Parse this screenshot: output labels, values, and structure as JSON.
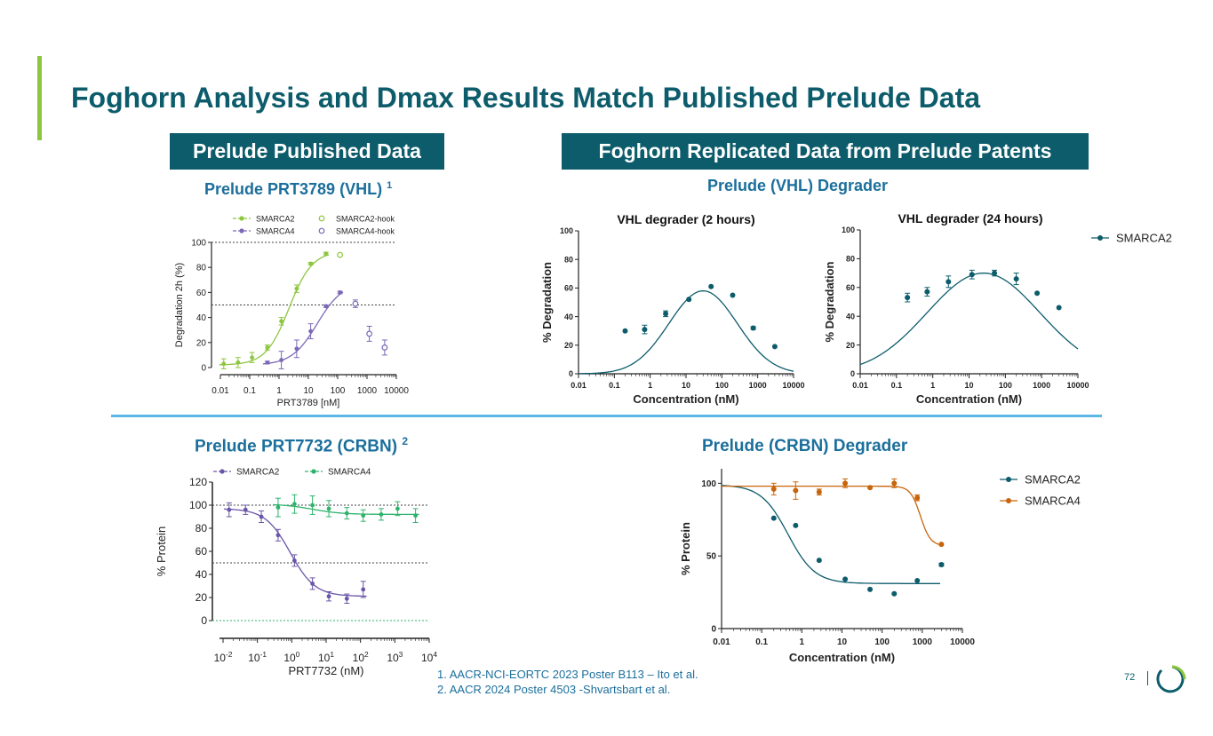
{
  "slide": {
    "title": "Foghorn Analysis and Dmax Results Match Published Prelude Data",
    "header_left": "Prelude Published Data",
    "header_right": "Foghorn Replicated Data from Prelude Patents",
    "subtitle_tl": "Prelude PRT3789 (VHL)",
    "subtitle_tl_sup": "1",
    "subtitle_bl": "Prelude PRT7732 (CRBN)",
    "subtitle_bl_sup": "2",
    "subtitle_tr": "Prelude (VHL) Degrader",
    "subtitle_br": "Prelude (CRBN) Degrader",
    "footnote1": "1. AACR-NCI-EORTC 2023 Poster B113 – Ito et al.",
    "footnote2": "2. AACR 2024 Poster 4503 -Shvartsbart et al.",
    "page_number": "72",
    "colors": {
      "brand": "#0d5c6b",
      "accent_green": "#8dc63f",
      "subtitle_blue": "#1b6f9c",
      "divider": "#5bb8e6"
    }
  },
  "chart_data": [
    {
      "id": "prt3789",
      "type": "scatter",
      "title": "",
      "xlabel": "PRT3789 [nM]",
      "ylabel": "Degradation 2h (%)",
      "xscale": "log",
      "xlim": [
        0.01,
        10000
      ],
      "ylim": [
        0,
        100
      ],
      "xticks": [
        0.01,
        0.1,
        1,
        10,
        100,
        1000,
        10000
      ],
      "xtick_labels": [
        "0.01",
        "0.1",
        "1",
        "10",
        "100",
        "1000",
        "10000"
      ],
      "yticks": [
        0,
        20,
        40,
        60,
        80,
        100
      ],
      "ytick_labels": [
        "0",
        "20",
        "40",
        "60",
        "80",
        "100"
      ],
      "reference_lines": [
        50,
        100
      ],
      "legend_position": "top",
      "series": [
        {
          "name": "SMARCA2",
          "color": "#8dc63f",
          "marker": "dot",
          "x": [
            0.013,
            0.04,
            0.12,
            0.4,
            1.2,
            4,
            12,
            40
          ],
          "y": [
            3,
            4,
            8,
            16,
            37,
            63,
            83,
            91
          ],
          "err": [
            4,
            4,
            4,
            2,
            3,
            3,
            1,
            1
          ],
          "fit": {
            "bottom": 2,
            "top": 93,
            "ec50": 2.2,
            "hill": 1.1
          }
        },
        {
          "name": "SMARCA4",
          "color": "#7b68b8",
          "marker": "dot",
          "x": [
            0.4,
            1.2,
            4,
            12,
            40,
            120
          ],
          "y": [
            4,
            6,
            15,
            29,
            49,
            60
          ],
          "err": [
            1,
            7,
            7,
            6,
            1,
            1
          ],
          "fit": {
            "bottom": 2,
            "top": 68,
            "ec50": 20,
            "hill": 1.0
          }
        },
        {
          "name": "SMARCA2-hook",
          "color": "#8dc63f",
          "marker": "open",
          "x": [
            120
          ],
          "y": [
            90
          ],
          "err": [
            0
          ]
        },
        {
          "name": "SMARCA4-hook",
          "color": "#7b68b8",
          "marker": "open",
          "x": [
            400,
            1200,
            4000
          ],
          "y": [
            51,
            27,
            16
          ],
          "err": [
            3,
            6,
            6
          ]
        }
      ]
    },
    {
      "id": "prt7732",
      "type": "scatter",
      "title": "",
      "xlabel": "PRT7732 (nM)",
      "ylabel": "% Protein",
      "xscale": "log",
      "xlim": [
        0.01,
        10000
      ],
      "ylim": [
        0,
        120
      ],
      "xticks": [
        0.01,
        0.1,
        1,
        10,
        100,
        1000,
        10000
      ],
      "xtick_labels": [
        [
          "10",
          "-2"
        ],
        [
          "10",
          "-1"
        ],
        [
          "10",
          "0"
        ],
        [
          "10",
          "1"
        ],
        [
          "10",
          "2"
        ],
        [
          "10",
          "3"
        ],
        [
          "10",
          "4"
        ]
      ],
      "yticks": [
        0,
        20,
        40,
        60,
        80,
        100,
        120
      ],
      "ytick_labels": [
        "0",
        "20",
        "40",
        "60",
        "80",
        "100",
        "120"
      ],
      "reference_lines": [
        0,
        50,
        100
      ],
      "legend_position": "top",
      "series": [
        {
          "name": "SMARCA2",
          "color": "#6a55a8",
          "marker": "dot",
          "x": [
            0.015,
            0.045,
            0.13,
            0.4,
            1.2,
            4,
            12,
            40,
            120
          ],
          "y": [
            96,
            96,
            90,
            74,
            52,
            32,
            21,
            19,
            27
          ],
          "err": [
            6,
            4,
            5,
            5,
            5,
            5,
            4,
            4,
            7
          ],
          "fit": {
            "bottom": 21,
            "top": 97,
            "ec50": 0.9,
            "hill": 1.2
          }
        },
        {
          "name": "SMARCA4",
          "color": "#2fb36c",
          "marker": "dot",
          "x": [
            0.4,
            1.2,
            4,
            12,
            40,
            120,
            400,
            1200,
            4000
          ],
          "y": [
            98,
            101,
            100,
            97,
            93,
            91,
            92,
            97,
            91
          ],
          "err": [
            8,
            8,
            8,
            7,
            5,
            5,
            5,
            6,
            6
          ],
          "fit": {
            "bottom": 92,
            "top": 101,
            "ec50": 4,
            "hill": 1.0
          }
        }
      ]
    },
    {
      "id": "vhl2h",
      "type": "scatter",
      "title": "VHL degrader (2 hours)",
      "xlabel": "Concentration (nM)",
      "ylabel": "% Degradation",
      "xscale": "log",
      "xlim": [
        0.01,
        10000
      ],
      "ylim": [
        0,
        100
      ],
      "xticks": [
        0.01,
        0.1,
        1,
        10,
        100,
        1000,
        10000
      ],
      "xtick_labels": [
        "0.01",
        "0.1",
        "1",
        "10",
        "100",
        "1000",
        "10000"
      ],
      "yticks": [
        0,
        20,
        40,
        60,
        80,
        100
      ],
      "ytick_labels": [
        "0",
        "20",
        "40",
        "60",
        "80",
        "100"
      ],
      "series": [
        {
          "name": "SMARCA2",
          "color": "#0d5c6b",
          "marker": "dot",
          "x": [
            0.2,
            0.7,
            2.7,
            12,
            50,
            200,
            750,
            3000
          ],
          "y": [
            30,
            31,
            42,
            52,
            61,
            55,
            32,
            19
          ],
          "err": [
            0,
            3,
            2,
            0,
            0,
            0,
            1,
            0
          ],
          "fit": {
            "type": "bell",
            "peak": 58,
            "peak_x": 30,
            "width": 1.35
          }
        }
      ]
    },
    {
      "id": "vhl24h",
      "type": "scatter",
      "title": "VHL degrader (24 hours)",
      "xlabel": "Concentration (nM)",
      "ylabel": "% Degradation",
      "xscale": "log",
      "xlim": [
        0.01,
        10000
      ],
      "ylim": [
        0,
        100
      ],
      "xticks": [
        0.01,
        0.1,
        1,
        10,
        100,
        1000,
        10000
      ],
      "xtick_labels": [
        "0.01",
        "0.1",
        "1",
        "10",
        "100",
        "1000",
        "10000"
      ],
      "yticks": [
        0,
        20,
        40,
        60,
        80,
        100
      ],
      "ytick_labels": [
        "0",
        "20",
        "40",
        "60",
        "80",
        "100"
      ],
      "legend_position": "right",
      "series": [
        {
          "name": "SMARCA2",
          "color": "#0d5c6b",
          "marker": "dot",
          "x": [
            0.2,
            0.7,
            2.7,
            12,
            50,
            200,
            750,
            3000
          ],
          "y": [
            53,
            57,
            64,
            69,
            70,
            66,
            56,
            46
          ],
          "err": [
            3,
            3,
            4,
            3,
            2,
            4,
            0,
            0
          ],
          "fit": {
            "type": "bell",
            "peak": 70,
            "peak_x": 25,
            "width": 2.2
          }
        }
      ]
    },
    {
      "id": "crbn",
      "type": "scatter",
      "title": "",
      "xlabel": "Concentration (nM)",
      "ylabel": "% Protein",
      "xscale": "log",
      "xlim": [
        0.01,
        10000
      ],
      "ylim": [
        0,
        110
      ],
      "xticks": [
        0.01,
        0.1,
        1,
        10,
        100,
        1000,
        10000
      ],
      "xtick_labels": [
        "0.01",
        "0.1",
        "1",
        "10",
        "100",
        "1000",
        "10000"
      ],
      "yticks": [
        0,
        50,
        100
      ],
      "ytick_labels": [
        "0",
        "50",
        "100"
      ],
      "legend_position": "right",
      "series": [
        {
          "name": "SMARCA2",
          "color": "#0d5c6b",
          "marker": "dot",
          "x": [
            0.2,
            0.7,
            2.7,
            12,
            50,
            200,
            750,
            3000
          ],
          "y": [
            76,
            71,
            47,
            34,
            27,
            24,
            33,
            44
          ],
          "err": [
            0,
            0,
            0,
            0,
            0,
            0,
            0,
            1
          ],
          "fit": {
            "bottom": 31,
            "top": 99,
            "ec50": 0.45,
            "hill": 1.3
          }
        },
        {
          "name": "SMARCA4",
          "color": "#c8640a",
          "marker": "dot",
          "x": [
            0.2,
            0.7,
            2.7,
            12,
            50,
            200,
            750,
            3000
          ],
          "y": [
            96,
            95,
            94,
            100,
            97,
            100,
            90,
            58
          ],
          "err": [
            4,
            6,
            2,
            3,
            0,
            3,
            2,
            0
          ],
          "fit": {
            "bottom": 57,
            "top": 98,
            "ec50": 900,
            "hill": 3.5
          }
        }
      ]
    }
  ]
}
